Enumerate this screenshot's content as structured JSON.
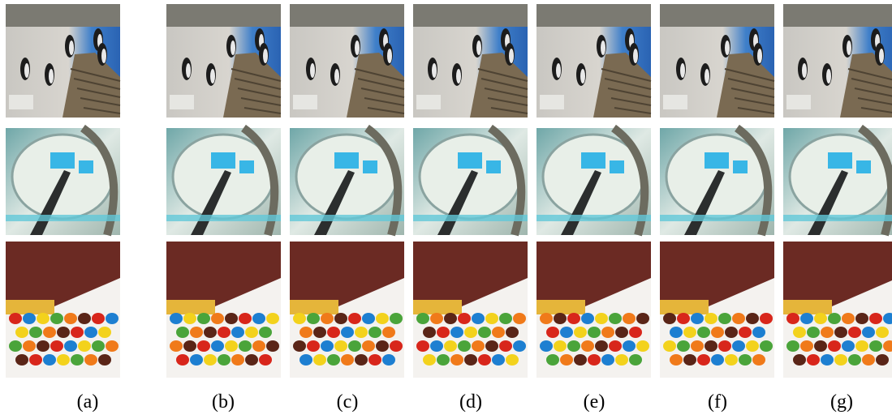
{
  "figure": {
    "captions": [
      "(a)",
      "(b)",
      "(c)",
      "(d)",
      "(e)",
      "(f)",
      "(g)"
    ]
  }
}
